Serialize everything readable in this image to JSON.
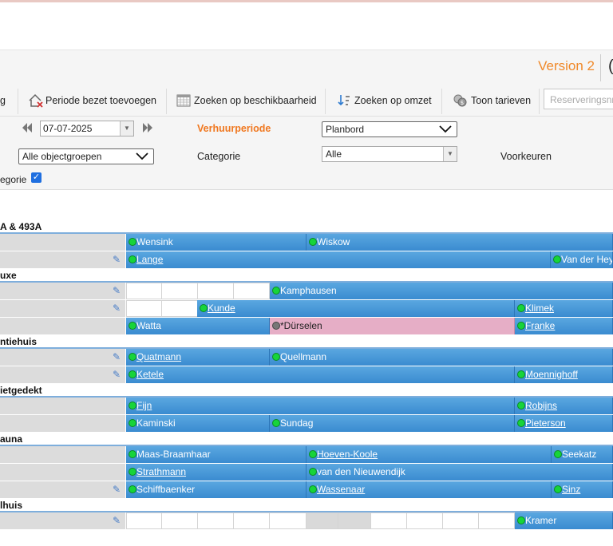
{
  "header": {
    "version": "Version 2",
    "logo_char": "("
  },
  "toolbar": {
    "partial_first": "g",
    "period_occupied": "Periode bezet toevoegen",
    "search_availability": "Zoeken op beschikbaarheid",
    "search_revenue": "Zoeken op omzet",
    "show_rates": "Toon tarieven",
    "search_placeholder": "Reserveringsnr"
  },
  "filters": {
    "date": "07-07-2025",
    "rental_period_label": "Verhuurperiode",
    "view_select": "Planbord",
    "objectgroups_select": "Alle objectgroepen",
    "category_label": "Categorie",
    "category_select": "Alle",
    "preferences_label": "Voorkeuren",
    "category_checkbox_label": "egorie"
  },
  "groups": [
    {
      "name": "A & 493A"
    },
    {
      "name": "uxe"
    },
    {
      "name": "ntiehuis"
    },
    {
      "name": "ietgedekt"
    },
    {
      "name": "auna"
    },
    {
      "name": "lhuis"
    }
  ],
  "bookings": {
    "wensink": "Wensink",
    "wiskow": "Wiskow",
    "lange": "Lange",
    "van_der_hey": "Van der Hey",
    "kamphausen": "Kamphausen",
    "kunde": "Kunde",
    "klimek": "Klimek",
    "watta": "Watta",
    "durselen": "*Dürselen",
    "franke": "Franke",
    "quatmann": "Quatmann",
    "quellmann": "Quellmann",
    "ketele": "Ketele",
    "moennighoff": "Moennighoff",
    "fijn": "Fijn",
    "robijns": "Robijns",
    "kaminski": "Kaminski",
    "sundag": "Sundag",
    "pieterson": "Pieterson",
    "maas": "Maas-Braamhaar",
    "hoeven": "Hoeven-Koole",
    "seekatz": "Seekatz",
    "strathmann": "Strathmann",
    "nieuwendijk": "van den Nieuwendijk",
    "schiffbaenker": "Schiffbaenker",
    "wassenaar": "Wassenaar",
    "sinz": "Sinz",
    "kramer": "Kramer"
  }
}
